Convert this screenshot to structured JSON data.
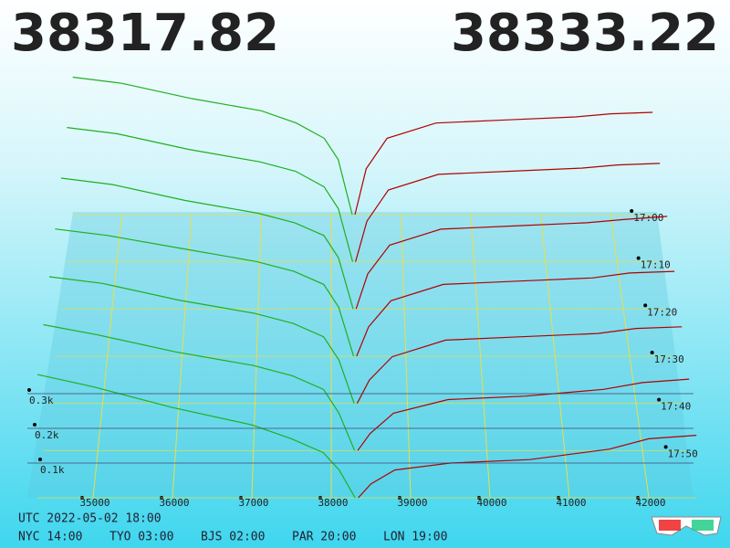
{
  "chart_data": {
    "type": "depth3d",
    "bid_price": "38317.82",
    "ask_price": "38333.22",
    "bid_color": "#1fb01f",
    "ask_color": "#b00000",
    "timestamp": "UTC 2022-05-02 18:00",
    "zones": [
      "NYC 14:00",
      "TYO 03:00",
      "BJS 02:00",
      "PAR 20:00",
      "LON 19:00"
    ],
    "xticks": [
      35000,
      36000,
      37000,
      38000,
      39000,
      40000,
      41000,
      42000
    ],
    "yticks": [
      {
        "value": 100,
        "label": "0.1k"
      },
      {
        "value": 200,
        "label": "0.2k"
      },
      {
        "value": 300,
        "label": "0.3k"
      }
    ],
    "bid_x": [
      34300,
      35000,
      36000,
      37000,
      37500,
      37900,
      38100,
      38300
    ],
    "ask_x": [
      38340,
      38500,
      38800,
      39500,
      40500,
      41500,
      42000,
      42600
    ],
    "snapshots": [
      {
        "name": "17:00",
        "bids": [
          450,
          430,
          380,
          340,
          300,
          250,
          180,
          0
        ],
        "asks": [
          0,
          150,
          250,
          300,
          310,
          320,
          330,
          335
        ]
      },
      {
        "name": "17:10",
        "bids": [
          430,
          410,
          360,
          320,
          290,
          240,
          170,
          0
        ],
        "asks": [
          0,
          130,
          230,
          280,
          290,
          300,
          310,
          315
        ]
      },
      {
        "name": "17:20",
        "bids": [
          410,
          390,
          340,
          300,
          270,
          230,
          160,
          0
        ],
        "asks": [
          0,
          110,
          200,
          250,
          260,
          270,
          280,
          290
        ]
      },
      {
        "name": "17:30",
        "bids": [
          390,
          370,
          330,
          290,
          260,
          220,
          150,
          0
        ],
        "asks": [
          0,
          90,
          170,
          220,
          230,
          240,
          255,
          260
        ]
      },
      {
        "name": "17:40",
        "bids": [
          380,
          360,
          310,
          270,
          240,
          200,
          130,
          0
        ],
        "asks": [
          0,
          70,
          140,
          190,
          200,
          210,
          225,
          230
        ]
      },
      {
        "name": "17:50",
        "bids": [
          370,
          340,
          290,
          250,
          220,
          180,
          110,
          0
        ],
        "asks": [
          0,
          50,
          110,
          150,
          160,
          180,
          200,
          210
        ]
      },
      {
        "name": null,
        "bids": [
          355,
          320,
          260,
          210,
          170,
          130,
          80,
          0
        ],
        "asks": [
          0,
          40,
          80,
          100,
          110,
          140,
          170,
          180
        ]
      }
    ]
  }
}
